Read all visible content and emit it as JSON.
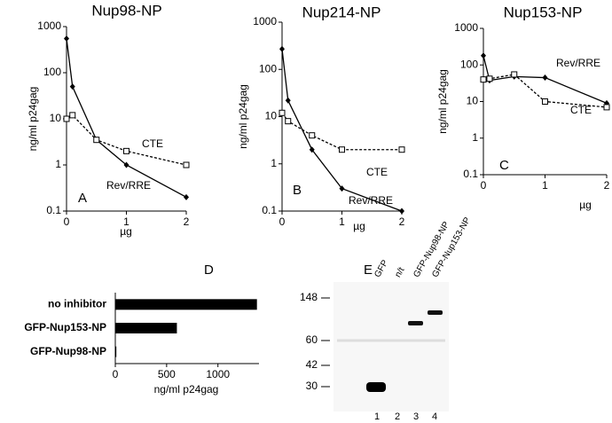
{
  "chart_data": [
    {
      "type": "line",
      "title": "Nup98-NP",
      "panel_label": "A",
      "y_label": "ng/ml p24gag",
      "x_label": "µg",
      "log_y": true,
      "ylim": [
        0.1,
        1000
      ],
      "yticks": [
        0.1,
        1,
        10,
        100,
        1000
      ],
      "xlim": [
        0,
        2
      ],
      "xticks": [
        0,
        1,
        2
      ],
      "x": [
        0,
        0.1,
        0.5,
        1,
        2
      ],
      "series": [
        {
          "name": "Rev/RRE",
          "color": "#000000",
          "marker": "diamond",
          "dashed": false,
          "values": [
            550,
            50,
            3.5,
            1,
            0.2
          ]
        },
        {
          "name": "CTE",
          "color": "#000000",
          "marker": "square",
          "dashed": true,
          "values": [
            10,
            12,
            3.5,
            2,
            1
          ]
        }
      ]
    },
    {
      "type": "line",
      "title": "Nup214-NP",
      "panel_label": "B",
      "y_label": "ng/ml p24gag",
      "x_label": "µg",
      "log_y": true,
      "ylim": [
        0.1,
        1000
      ],
      "yticks": [
        0.1,
        1,
        10,
        100,
        1000
      ],
      "xlim": [
        0,
        2
      ],
      "xticks": [
        0,
        1,
        2
      ],
      "x": [
        0,
        0.1,
        0.5,
        1,
        2
      ],
      "series": [
        {
          "name": "Rev/RRE",
          "color": "#000000",
          "marker": "diamond",
          "dashed": false,
          "values": [
            270,
            22,
            2,
            0.3,
            0.1
          ]
        },
        {
          "name": "CTE",
          "color": "#000000",
          "marker": "square",
          "dashed": true,
          "values": [
            12,
            8,
            4,
            2,
            2
          ]
        }
      ]
    },
    {
      "type": "line",
      "title": "Nup153-NP",
      "panel_label": "C",
      "y_label": "ng/ml p24gag",
      "x_label": "µg",
      "log_y": true,
      "ylim": [
        0.1,
        1000
      ],
      "yticks": [
        0.1,
        1,
        10,
        100,
        1000
      ],
      "xlim": [
        0,
        2
      ],
      "xticks": [
        0,
        1,
        2
      ],
      "x": [
        0,
        0.1,
        0.5,
        1,
        2
      ],
      "series": [
        {
          "name": "Rev/RRE",
          "color": "#000000",
          "marker": "diamond",
          "dashed": false,
          "values": [
            180,
            38,
            48,
            45,
            9
          ]
        },
        {
          "name": "CTE",
          "color": "#000000",
          "marker": "square",
          "dashed": true,
          "values": [
            40,
            42,
            55,
            10,
            7
          ]
        }
      ]
    },
    {
      "type": "hbar",
      "panel_label": "D",
      "x_label": "ng/ml p24gag",
      "color": "#000000",
      "categories": [
        "no inhibitor",
        "GFP-Nup153-NP",
        "GFP-Nup98-NP"
      ],
      "values": [
        1380,
        600,
        10
      ],
      "xlim": [
        0,
        1400
      ],
      "xticks": [
        0,
        500,
        1000
      ]
    }
  ],
  "blot": {
    "panel_label": "E",
    "lanes": [
      "GFP",
      "n/t",
      "GFP-Nup98-NP",
      "GFP-Nup153-NP"
    ],
    "lane_numbers": [
      "1",
      "2",
      "3",
      "4"
    ],
    "markers": [
      148,
      60,
      42,
      30
    ]
  }
}
